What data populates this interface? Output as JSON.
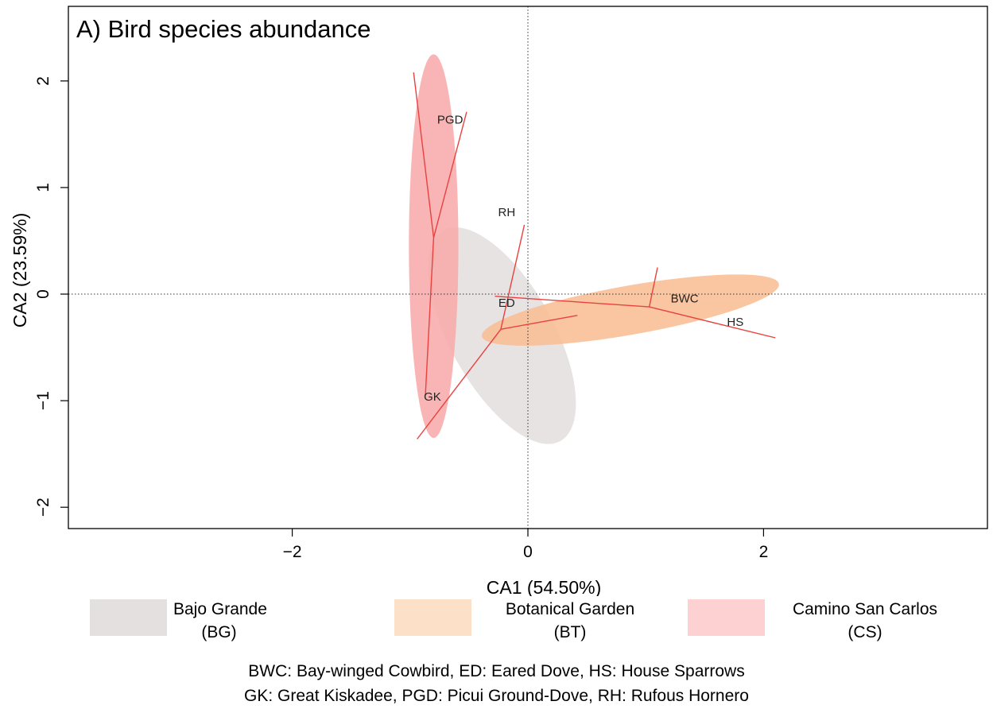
{
  "chart_data": {
    "type": "scatter",
    "panel_title": "A) Bird species abundance",
    "xlabel": "CA1 (54.50%)",
    "ylabel": "CA2 (23.59%)",
    "xlim": [
      -3.9,
      3.9
    ],
    "ylim": [
      -2.2,
      2.7
    ],
    "xticks": [
      -2,
      0,
      2
    ],
    "yticks": [
      -2,
      -1,
      0,
      1,
      2
    ],
    "xtick_labels": [
      "−2",
      "0",
      "2"
    ],
    "ytick_labels": [
      "−2",
      "−1",
      "0",
      "1",
      "2"
    ],
    "reference_lines": {
      "x": 0,
      "y": 0,
      "style": "dotted"
    },
    "species": [
      {
        "code": "PGD",
        "x": -0.66,
        "y": 1.6
      },
      {
        "code": "RH",
        "x": -0.18,
        "y": 0.73
      },
      {
        "code": "ED",
        "x": -0.18,
        "y": -0.12
      },
      {
        "code": "BWC",
        "x": 1.33,
        "y": -0.08
      },
      {
        "code": "HS",
        "x": 1.76,
        "y": -0.3
      },
      {
        "code": "GK",
        "x": -0.81,
        "y": -1.0
      }
    ],
    "groups": [
      {
        "name": "Bajo Grande",
        "abbr": "(BG)",
        "color": "#e3dede",
        "ellipse": {
          "cx": -0.22,
          "cy": -0.39,
          "rx": 0.44,
          "ry": 1.13,
          "angle": -29
        },
        "centroid": [
          -0.23,
          -0.33
        ],
        "spokes": [
          [
            0.42,
            -0.2
          ],
          [
            -0.94,
            -1.36
          ],
          [
            -0.03,
            0.65
          ]
        ]
      },
      {
        "name": "Botanical Garden",
        "abbr": "(BT)",
        "color": "#f9bc92",
        "ellipse": {
          "cx": 0.87,
          "cy": -0.15,
          "rx": 1.28,
          "ry": 0.23,
          "angle": -10
        },
        "centroid": [
          1.03,
          -0.12
        ],
        "spokes": [
          [
            2.1,
            -0.41
          ],
          [
            1.1,
            0.25
          ],
          [
            -0.28,
            -0.02
          ]
        ]
      },
      {
        "name": "Camino San Carlos",
        "abbr": "(CS)",
        "color": "#f8a8a8",
        "ellipse": {
          "cx": -0.8,
          "cy": 0.45,
          "rx": 0.21,
          "ry": 1.8,
          "angle": 0
        },
        "centroid": [
          -0.8,
          0.53
        ],
        "spokes": [
          [
            -0.97,
            2.08
          ],
          [
            -0.52,
            1.71
          ],
          [
            -0.87,
            -0.95
          ]
        ]
      }
    ],
    "spoke_color": "#e8413e"
  },
  "legend": [
    {
      "line1": "Bajo Grande",
      "line2": "(BG)",
      "color": "#e4e0e0"
    },
    {
      "line1": "Botanical Garden",
      "line2": "(BT)",
      "color": "#fde0c8"
    },
    {
      "line1": "Camino San Carlos",
      "line2": "(CS)",
      "color": "#fdd0d2"
    }
  ],
  "footnote": {
    "line1": "BWC: Bay-winged Cowbird, ED: Eared Dove, HS: House Sparrows",
    "line2": "GK: Great Kiskadee, PGD: Picui Ground-Dove, RH: Rufous Hornero"
  }
}
